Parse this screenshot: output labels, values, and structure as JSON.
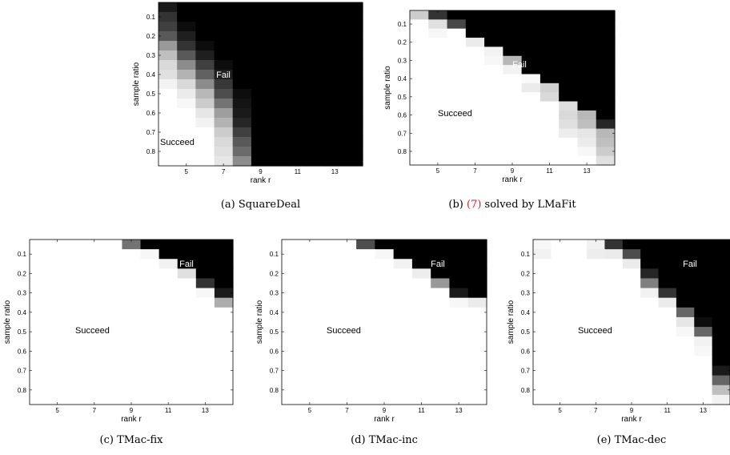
{
  "chart_data": [
    {
      "type": "heatmap",
      "caption": {
        "label": "(a)",
        "name": "SquareDeal"
      },
      "xlabel": "rank r",
      "ylabel": "sample ratio",
      "x_ticks": [
        5,
        7,
        9,
        11,
        13
      ],
      "y_ticks": [
        "0.1",
        "0.2",
        "0.3",
        "0.4",
        "0.5",
        "0.6",
        "0.7",
        "0.8"
      ],
      "annotations": {
        "fail": "Fail",
        "succeed": "Succeed"
      },
      "columns": [
        4,
        5,
        6,
        7,
        8,
        9,
        10,
        11,
        12,
        13,
        14
      ],
      "rows": [
        0.05,
        0.1,
        0.15,
        0.2,
        0.25,
        0.3,
        0.35,
        0.4,
        0.45,
        0.5,
        0.55,
        0.6,
        0.65,
        0.7,
        0.75,
        0.8,
        0.85
      ],
      "values": [
        [
          0.1,
          0,
          0,
          0,
          0,
          0,
          0,
          0,
          0,
          0,
          0
        ],
        [
          0.2,
          0,
          0,
          0,
          0,
          0,
          0,
          0,
          0,
          0,
          0
        ],
        [
          0.25,
          0.05,
          0,
          0,
          0,
          0,
          0,
          0,
          0,
          0,
          0
        ],
        [
          0.35,
          0.12,
          0,
          0,
          0,
          0,
          0,
          0,
          0,
          0,
          0
        ],
        [
          0.6,
          0.2,
          0.05,
          0,
          0,
          0,
          0,
          0,
          0,
          0,
          0
        ],
        [
          0.75,
          0.35,
          0.12,
          0,
          0,
          0,
          0,
          0,
          0,
          0,
          0
        ],
        [
          0.85,
          0.55,
          0.25,
          0.05,
          0,
          0,
          0,
          0,
          0,
          0,
          0
        ],
        [
          0.88,
          0.7,
          0.38,
          0.12,
          0,
          0,
          0,
          0,
          0,
          0,
          0
        ],
        [
          0.95,
          0.85,
          0.55,
          0.22,
          0,
          0,
          0,
          0,
          0,
          0,
          0
        ],
        [
          1,
          0.92,
          0.72,
          0.3,
          0.05,
          0,
          0,
          0,
          0,
          0,
          0
        ],
        [
          1,
          0.97,
          0.8,
          0.45,
          0.08,
          0,
          0,
          0,
          0,
          0,
          0
        ],
        [
          1,
          1,
          0.9,
          0.62,
          0.1,
          0,
          0,
          0,
          0,
          0,
          0
        ],
        [
          1,
          1,
          0.95,
          0.7,
          0.15,
          0,
          0,
          0,
          0,
          0,
          0
        ],
        [
          1,
          1,
          1,
          0.8,
          0.25,
          0,
          0,
          0,
          0,
          0,
          0
        ],
        [
          1,
          1,
          1,
          0.85,
          0.35,
          0,
          0,
          0,
          0,
          0,
          0
        ],
        [
          1,
          1,
          1,
          0.88,
          0.42,
          0,
          0,
          0,
          0,
          0,
          0
        ],
        [
          1,
          1,
          1,
          0.9,
          0.55,
          0,
          0,
          0,
          0,
          0,
          0
        ]
      ]
    },
    {
      "type": "heatmap",
      "caption": {
        "label": "(b)",
        "ref": "(7)",
        "name": "solved by LMaFit"
      },
      "xlabel": "rank r",
      "ylabel": "sample ratio",
      "x_ticks": [
        5,
        7,
        9,
        11,
        13
      ],
      "y_ticks": [
        "0.1",
        "0.2",
        "0.3",
        "0.4",
        "0.5",
        "0.6",
        "0.7",
        "0.8"
      ],
      "annotations": {
        "fail": "Fail",
        "succeed": "Succeed"
      },
      "columns": [
        4,
        5,
        6,
        7,
        8,
        9,
        10,
        11,
        12,
        13,
        14
      ],
      "rows": [
        0.05,
        0.1,
        0.15,
        0.2,
        0.25,
        0.3,
        0.35,
        0.4,
        0.45,
        0.5,
        0.55,
        0.6,
        0.65,
        0.7,
        0.75,
        0.8,
        0.85
      ],
      "values": [
        [
          0.8,
          0.2,
          0,
          0,
          0,
          0,
          0,
          0,
          0,
          0,
          0
        ],
        [
          1,
          0.88,
          0.28,
          0,
          0,
          0,
          0,
          0,
          0,
          0,
          0
        ],
        [
          1,
          0.97,
          1,
          0,
          0,
          0,
          0,
          0,
          0,
          0,
          0
        ],
        [
          1,
          1,
          1,
          0.92,
          0,
          0,
          0,
          0,
          0,
          0,
          0
        ],
        [
          1,
          1,
          1,
          1,
          0.95,
          0,
          0,
          0,
          0,
          0,
          0
        ],
        [
          1,
          1,
          1,
          1,
          0.97,
          0.72,
          0,
          0,
          0,
          0,
          0
        ],
        [
          1,
          1,
          1,
          1,
          1,
          0.95,
          0,
          0,
          0,
          0,
          0
        ],
        [
          1,
          1,
          1,
          1,
          1,
          1,
          0.98,
          0,
          0,
          0,
          0
        ],
        [
          1,
          1,
          1,
          1,
          1,
          1,
          0.92,
          0.82,
          0,
          0,
          0
        ],
        [
          1,
          1,
          1,
          1,
          1,
          1,
          1,
          0.85,
          0,
          0,
          0
        ],
        [
          1,
          1,
          1,
          1,
          1,
          1,
          1,
          1,
          0.88,
          0,
          0
        ],
        [
          1,
          1,
          1,
          1,
          1,
          1,
          1,
          1,
          0.85,
          0.72,
          0
        ],
        [
          1,
          1,
          1,
          1,
          1,
          1,
          1,
          1,
          0.88,
          0.75,
          0.15
        ],
        [
          1,
          1,
          1,
          1,
          1,
          1,
          1,
          1,
          0.93,
          0.9,
          0.72
        ],
        [
          1,
          1,
          1,
          1,
          1,
          1,
          1,
          1,
          1,
          0.92,
          0.75
        ],
        [
          1,
          1,
          1,
          1,
          1,
          1,
          1,
          1,
          1,
          0.97,
          0.8
        ],
        [
          1,
          1,
          1,
          1,
          1,
          1,
          1,
          1,
          1,
          1,
          0.88
        ]
      ]
    },
    {
      "type": "heatmap",
      "caption": {
        "label": "(c)",
        "name": "TMac-fix"
      },
      "xlabel": "rank r",
      "ylabel": "sample ratio",
      "x_ticks": [
        5,
        7,
        9,
        11,
        13
      ],
      "y_ticks": [
        "0.1",
        "0.2",
        "0.3",
        "0.4",
        "0.5",
        "0.6",
        "0.7",
        "0.8"
      ],
      "annotations": {
        "fail": "Fail",
        "succeed": "Succeed"
      },
      "columns": [
        4,
        5,
        6,
        7,
        8,
        9,
        10,
        11,
        12,
        13,
        14
      ],
      "rows": [
        0.05,
        0.1,
        0.15,
        0.2,
        0.25,
        0.3,
        0.35,
        0.4,
        0.45,
        0.5,
        0.55,
        0.6,
        0.65,
        0.7,
        0.75,
        0.8,
        0.85
      ],
      "values": [
        [
          1,
          1,
          1,
          1,
          1,
          0.45,
          0,
          0,
          0,
          0,
          0
        ],
        [
          1,
          1,
          1,
          1,
          1,
          1,
          0.97,
          0,
          0,
          0,
          0
        ],
        [
          1,
          1,
          1,
          1,
          1,
          1,
          1,
          0.95,
          0,
          0,
          0
        ],
        [
          1,
          1,
          1,
          1,
          1,
          1,
          1,
          1,
          0.88,
          0,
          0
        ],
        [
          1,
          1,
          1,
          1,
          1,
          1,
          1,
          1,
          1,
          0.2,
          0
        ],
        [
          1,
          1,
          1,
          1,
          1,
          1,
          1,
          1,
          1,
          0.97,
          0.1
        ],
        [
          1,
          1,
          1,
          1,
          1,
          1,
          1,
          1,
          1,
          1,
          0.68
        ],
        [
          1,
          1,
          1,
          1,
          1,
          1,
          1,
          1,
          1,
          1,
          1
        ],
        [
          1,
          1,
          1,
          1,
          1,
          1,
          1,
          1,
          1,
          1,
          1
        ],
        [
          1,
          1,
          1,
          1,
          1,
          1,
          1,
          1,
          1,
          1,
          1
        ],
        [
          1,
          1,
          1,
          1,
          1,
          1,
          1,
          1,
          1,
          1,
          1
        ],
        [
          1,
          1,
          1,
          1,
          1,
          1,
          1,
          1,
          1,
          1,
          1
        ],
        [
          1,
          1,
          1,
          1,
          1,
          1,
          1,
          1,
          1,
          1,
          1
        ],
        [
          1,
          1,
          1,
          1,
          1,
          1,
          1,
          1,
          1,
          1,
          1
        ],
        [
          1,
          1,
          1,
          1,
          1,
          1,
          1,
          1,
          1,
          1,
          1
        ],
        [
          1,
          1,
          1,
          1,
          1,
          1,
          1,
          1,
          1,
          1,
          1
        ],
        [
          1,
          1,
          1,
          1,
          1,
          1,
          1,
          1,
          1,
          1,
          1
        ]
      ]
    },
    {
      "type": "heatmap",
      "caption": {
        "label": "(d)",
        "name": "TMac-inc"
      },
      "xlabel": "rank r",
      "ylabel": "sample ratio",
      "x_ticks": [
        5,
        7,
        9,
        11,
        13
      ],
      "y_ticks": [
        "0.1",
        "0.2",
        "0.3",
        "0.4",
        "0.5",
        "0.6",
        "0.7",
        "0.8"
      ],
      "annotations": {
        "fail": "Fail",
        "succeed": "Succeed"
      },
      "columns": [
        4,
        5,
        6,
        7,
        8,
        9,
        10,
        11,
        12,
        13,
        14
      ],
      "rows": [
        0.05,
        0.1,
        0.15,
        0.2,
        0.25,
        0.3,
        0.35,
        0.4,
        0.45,
        0.5,
        0.55,
        0.6,
        0.65,
        0.7,
        0.75,
        0.8,
        0.85
      ],
      "values": [
        [
          1,
          1,
          1,
          1,
          0.3,
          0,
          0,
          0,
          0,
          0,
          0
        ],
        [
          1,
          1,
          1,
          1,
          1,
          0.97,
          0,
          0,
          0,
          0,
          0
        ],
        [
          1,
          1,
          1,
          1,
          1,
          1,
          0.95,
          0,
          0,
          0,
          0
        ],
        [
          1,
          1,
          1,
          1,
          1,
          1,
          1,
          0.93,
          0,
          0,
          0
        ],
        [
          1,
          1,
          1,
          1,
          1,
          1,
          1,
          1,
          0.6,
          0,
          0
        ],
        [
          1,
          1,
          1,
          1,
          1,
          1,
          1,
          1,
          1,
          0.1,
          0
        ],
        [
          1,
          1,
          1,
          1,
          1,
          1,
          1,
          1,
          1,
          0.97,
          0.92
        ],
        [
          1,
          1,
          1,
          1,
          1,
          1,
          1,
          1,
          1,
          1,
          1
        ],
        [
          1,
          1,
          1,
          1,
          1,
          1,
          1,
          1,
          1,
          1,
          1
        ],
        [
          1,
          1,
          1,
          1,
          1,
          1,
          1,
          1,
          1,
          1,
          1
        ],
        [
          1,
          1,
          1,
          1,
          1,
          1,
          1,
          1,
          1,
          1,
          1
        ],
        [
          1,
          1,
          1,
          1,
          1,
          1,
          1,
          1,
          1,
          1,
          1
        ],
        [
          1,
          1,
          1,
          1,
          1,
          1,
          1,
          1,
          1,
          1,
          1
        ],
        [
          1,
          1,
          1,
          1,
          1,
          1,
          1,
          1,
          1,
          1,
          1
        ],
        [
          1,
          1,
          1,
          1,
          1,
          1,
          1,
          1,
          1,
          1,
          1
        ],
        [
          1,
          1,
          1,
          1,
          1,
          1,
          1,
          1,
          1,
          1,
          1
        ],
        [
          1,
          1,
          1,
          1,
          1,
          1,
          1,
          1,
          1,
          1,
          1
        ]
      ]
    },
    {
      "type": "heatmap",
      "caption": {
        "label": "(e)",
        "name": "TMac-dec"
      },
      "xlabel": "rank r",
      "ylabel": "sample ratio",
      "x_ticks": [
        5,
        7,
        9,
        11,
        13
      ],
      "y_ticks": [
        "0.1",
        "0.2",
        "0.3",
        "0.4",
        "0.5",
        "0.6",
        "0.7",
        "0.8"
      ],
      "annotations": {
        "fail": "Fail",
        "succeed": "Succeed"
      },
      "columns": [
        4,
        5,
        6,
        7,
        8,
        9,
        10,
        11,
        12,
        13,
        14
      ],
      "rows": [
        0.05,
        0.1,
        0.15,
        0.2,
        0.25,
        0.3,
        0.35,
        0.4,
        0.45,
        0.5,
        0.55,
        0.6,
        0.65,
        0.7,
        0.75,
        0.8,
        0.85
      ],
      "values": [
        [
          0.97,
          1,
          1,
          0.95,
          0.2,
          0,
          0,
          0,
          0,
          0,
          0
        ],
        [
          0.95,
          1,
          1,
          0.93,
          0.92,
          0.3,
          0,
          0,
          0,
          0,
          0
        ],
        [
          1,
          1,
          1,
          1,
          1,
          0.92,
          0,
          0,
          0,
          0,
          0
        ],
        [
          1,
          1,
          1,
          1,
          1,
          1,
          0.15,
          0,
          0,
          0,
          0
        ],
        [
          1,
          1,
          1,
          1,
          1,
          1,
          0.5,
          0,
          0,
          0,
          0
        ],
        [
          1,
          1,
          1,
          1,
          1,
          1,
          0.95,
          0.2,
          0,
          0,
          0
        ],
        [
          1,
          1,
          1,
          1,
          1,
          1,
          1,
          0.92,
          0,
          0,
          0
        ],
        [
          1,
          1,
          1,
          1,
          1,
          1,
          1,
          1,
          0.4,
          0,
          0
        ],
        [
          1,
          1,
          1,
          1,
          1,
          1,
          1,
          1,
          0.9,
          0.05,
          0
        ],
        [
          1,
          1,
          1,
          1,
          1,
          1,
          1,
          1,
          0.97,
          0.4,
          0
        ],
        [
          1,
          1,
          1,
          1,
          1,
          1,
          1,
          1,
          1,
          0.95,
          0
        ],
        [
          1,
          1,
          1,
          1,
          1,
          1,
          1,
          1,
          1,
          0.97,
          0
        ],
        [
          1,
          1,
          1,
          1,
          1,
          1,
          1,
          1,
          1,
          1,
          0
        ],
        [
          1,
          1,
          1,
          1,
          1,
          1,
          1,
          1,
          1,
          1,
          0.1
        ],
        [
          1,
          1,
          1,
          1,
          1,
          1,
          1,
          1,
          1,
          1,
          0.4
        ],
        [
          1,
          1,
          1,
          1,
          1,
          1,
          1,
          1,
          1,
          1,
          0.75
        ],
        [
          1,
          1,
          1,
          1,
          1,
          1,
          1,
          1,
          1,
          1,
          0.95
        ]
      ]
    }
  ]
}
